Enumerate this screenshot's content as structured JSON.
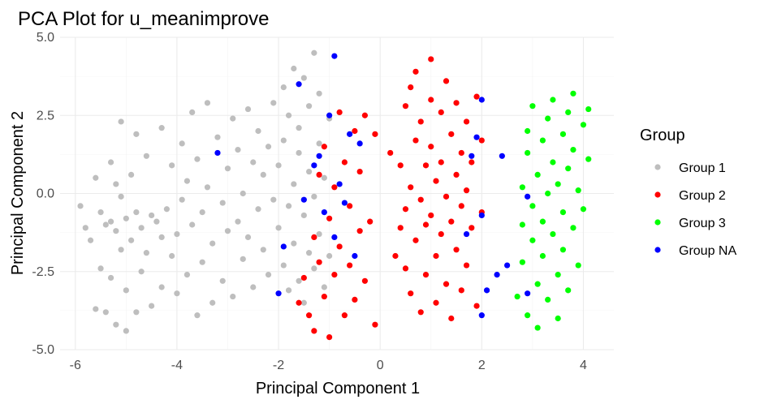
{
  "chart_data": {
    "type": "scatter",
    "title": "PCA Plot for u_meanimprove",
    "xlabel": "Principal Component 1",
    "ylabel": "Principal Component 2",
    "xlim": [
      -6.3,
      4.6
    ],
    "ylim": [
      -5.0,
      5.0
    ],
    "x_ticks": [
      -6,
      -4,
      -2,
      0,
      2,
      4
    ],
    "y_ticks": [
      -5.0,
      -2.5,
      0.0,
      2.5,
      5.0
    ],
    "x_tick_labels": [
      "-6",
      "-4",
      "-2",
      "0",
      "2",
      "4"
    ],
    "y_tick_labels": [
      "-5.0",
      "-2.5",
      "0.0",
      "2.5",
      "5.0"
    ],
    "grid": true,
    "legend": {
      "title": "Group",
      "position": "right"
    },
    "series": [
      {
        "name": "Group 1",
        "color": "#bebebe",
        "points": [
          [
            -5.9,
            -0.4
          ],
          [
            -5.8,
            -1.1
          ],
          [
            -5.7,
            -1.5
          ],
          [
            -5.6,
            0.5
          ],
          [
            -5.6,
            -3.7
          ],
          [
            -5.5,
            -0.6
          ],
          [
            -5.5,
            -2.4
          ],
          [
            -5.4,
            -1.0
          ],
          [
            -5.4,
            -3.8
          ],
          [
            -5.3,
            1.0
          ],
          [
            -5.3,
            -0.9
          ],
          [
            -5.3,
            -2.7
          ],
          [
            -5.2,
            0.3
          ],
          [
            -5.2,
            -4.2
          ],
          [
            -5.2,
            -1.2
          ],
          [
            -5.1,
            2.3
          ],
          [
            -5.1,
            -0.1
          ],
          [
            -5.1,
            -1.8
          ],
          [
            -5.0,
            -0.8
          ],
          [
            -5.0,
            -3.1
          ],
          [
            -5.0,
            -4.4
          ],
          [
            -4.9,
            -1.5
          ],
          [
            -4.9,
            0.6
          ],
          [
            -4.8,
            1.9
          ],
          [
            -4.8,
            -0.6
          ],
          [
            -4.8,
            -3.8
          ],
          [
            -4.7,
            -1.1
          ],
          [
            -4.7,
            -2.5
          ],
          [
            -4.6,
            -1.9
          ],
          [
            -4.6,
            1.2
          ],
          [
            -4.5,
            -0.7
          ],
          [
            -4.5,
            -3.6
          ],
          [
            -4.4,
            -0.9
          ],
          [
            -4.3,
            2.1
          ],
          [
            -4.3,
            -1.4
          ],
          [
            -4.3,
            -3.0
          ],
          [
            -4.2,
            -0.5
          ],
          [
            -4.1,
            0.9
          ],
          [
            -4.1,
            -2.0
          ],
          [
            -4.0,
            -1.3
          ],
          [
            -4.0,
            -3.2
          ],
          [
            -3.9,
            1.6
          ],
          [
            -3.9,
            -0.2
          ],
          [
            -3.8,
            -2.6
          ],
          [
            -3.8,
            0.4
          ],
          [
            -3.7,
            2.6
          ],
          [
            -3.7,
            -1.0
          ],
          [
            -3.6,
            -3.9
          ],
          [
            -3.6,
            1.1
          ],
          [
            -3.5,
            -0.6
          ],
          [
            -3.5,
            -2.2
          ],
          [
            -3.4,
            2.9
          ],
          [
            -3.4,
            0.2
          ],
          [
            -3.3,
            -1.6
          ],
          [
            -3.3,
            -3.5
          ],
          [
            -3.2,
            1.8
          ],
          [
            -3.1,
            -0.3
          ],
          [
            -3.1,
            -2.8
          ],
          [
            -3.0,
            0.8
          ],
          [
            -3.0,
            -1.2
          ],
          [
            -2.9,
            2.4
          ],
          [
            -2.9,
            -3.3
          ],
          [
            -2.8,
            1.4
          ],
          [
            -2.8,
            -0.9
          ],
          [
            -2.7,
            0.0
          ],
          [
            -2.7,
            -2.1
          ],
          [
            -2.6,
            2.7
          ],
          [
            -2.6,
            -1.4
          ],
          [
            -2.5,
            1.0
          ],
          [
            -2.5,
            -3.0
          ],
          [
            -2.4,
            -0.5
          ],
          [
            -2.4,
            2.0
          ],
          [
            -2.3,
            -1.8
          ],
          [
            -2.3,
            0.6
          ],
          [
            -2.2,
            1.5
          ],
          [
            -2.2,
            -2.6
          ],
          [
            -2.1,
            -0.2
          ],
          [
            -2.1,
            2.9
          ],
          [
            -2.0,
            -1.1
          ],
          [
            -2.0,
            0.9
          ],
          [
            -1.9,
            -2.3
          ],
          [
            -1.9,
            1.7
          ],
          [
            -1.9,
            3.4
          ],
          [
            -1.8,
            -0.4
          ],
          [
            -1.8,
            -3.1
          ],
          [
            -1.8,
            2.5
          ],
          [
            -1.7,
            0.3
          ],
          [
            -1.7,
            -1.6
          ],
          [
            -1.7,
            4.0
          ],
          [
            -1.6,
            1.3
          ],
          [
            -1.6,
            -2.8
          ],
          [
            -1.6,
            2.1
          ],
          [
            -1.5,
            -0.7
          ],
          [
            -1.5,
            3.7
          ],
          [
            -1.5,
            -3.5
          ],
          [
            -1.4,
            0.7
          ],
          [
            -1.4,
            -1.9
          ],
          [
            -1.4,
            2.8
          ],
          [
            -1.3,
            4.5
          ],
          [
            -1.3,
            -0.1
          ],
          [
            -1.3,
            -2.4
          ],
          [
            -1.2,
            1.6
          ],
          [
            -1.2,
            3.2
          ],
          [
            -1.2,
            -1.3
          ],
          [
            -1.1,
            -3.0
          ],
          [
            -1.1,
            0.5
          ],
          [
            -1.0,
            2.4
          ],
          [
            -1.0,
            -2.0
          ]
        ]
      },
      {
        "name": "Group 2",
        "color": "#ff0000",
        "points": [
          [
            -1.6,
            -3.5
          ],
          [
            -1.5,
            -2.7
          ],
          [
            -1.4,
            -3.9
          ],
          [
            -1.3,
            -1.4
          ],
          [
            -1.3,
            -4.4
          ],
          [
            -1.2,
            -2.2
          ],
          [
            -1.2,
            0.6
          ],
          [
            -1.1,
            -3.3
          ],
          [
            -1.1,
            1.5
          ],
          [
            -1.0,
            -0.8
          ],
          [
            -1.0,
            -4.6
          ],
          [
            -0.9,
            0.2
          ],
          [
            -0.9,
            -2.6
          ],
          [
            -0.8,
            2.6
          ],
          [
            -0.8,
            -1.7
          ],
          [
            -0.7,
            -3.9
          ],
          [
            -0.7,
            1.0
          ],
          [
            -0.6,
            -0.4
          ],
          [
            -0.6,
            -2.3
          ],
          [
            -0.5,
            2.0
          ],
          [
            -0.5,
            -3.4
          ],
          [
            -0.4,
            0.7
          ],
          [
            -0.4,
            -1.2
          ],
          [
            -0.3,
            2.5
          ],
          [
            -0.3,
            -2.8
          ],
          [
            -0.2,
            -0.9
          ],
          [
            -0.1,
            -4.2
          ],
          [
            -0.1,
            1.9
          ],
          [
            0.2,
            1.3
          ],
          [
            0.3,
            -2.0
          ],
          [
            0.4,
            -1.1
          ],
          [
            0.4,
            0.9
          ],
          [
            0.5,
            2.8
          ],
          [
            0.5,
            -0.5
          ],
          [
            0.5,
            -2.4
          ],
          [
            0.6,
            3.4
          ],
          [
            0.6,
            0.2
          ],
          [
            0.6,
            -3.2
          ],
          [
            0.7,
            1.7
          ],
          [
            0.7,
            -1.5
          ],
          [
            0.7,
            3.9
          ],
          [
            0.8,
            -0.2
          ],
          [
            0.8,
            -3.8
          ],
          [
            0.8,
            2.3
          ],
          [
            0.9,
            0.9
          ],
          [
            0.9,
            -1.0
          ],
          [
            0.9,
            -2.6
          ],
          [
            1.0,
            3.0
          ],
          [
            1.0,
            -0.7
          ],
          [
            1.0,
            1.5
          ],
          [
            1.0,
            4.3
          ],
          [
            1.1,
            -2.0
          ],
          [
            1.1,
            0.4
          ],
          [
            1.1,
            -3.5
          ],
          [
            1.2,
            2.6
          ],
          [
            1.2,
            -1.3
          ],
          [
            1.2,
            1.0
          ],
          [
            1.3,
            -0.1
          ],
          [
            1.3,
            3.6
          ],
          [
            1.3,
            -2.9
          ],
          [
            1.4,
            1.9
          ],
          [
            1.4,
            -0.9
          ],
          [
            1.4,
            -4.0
          ],
          [
            1.5,
            0.6
          ],
          [
            1.5,
            2.9
          ],
          [
            1.5,
            -1.8
          ],
          [
            1.6,
            -0.4
          ],
          [
            1.6,
            1.3
          ],
          [
            1.6,
            -3.1
          ],
          [
            1.7,
            2.3
          ],
          [
            1.7,
            0.1
          ],
          [
            1.7,
            -2.3
          ],
          [
            1.8,
            1.0
          ],
          [
            1.8,
            -1.1
          ],
          [
            1.9,
            3.1
          ],
          [
            1.9,
            -3.6
          ],
          [
            2.0,
            1.7
          ],
          [
            2.0,
            -0.6
          ]
        ]
      },
      {
        "name": "Group 3",
        "color": "#00ff00",
        "points": [
          [
            2.7,
            -3.3
          ],
          [
            2.8,
            -1.0
          ],
          [
            2.8,
            0.2
          ],
          [
            2.8,
            -2.2
          ],
          [
            2.9,
            1.3
          ],
          [
            2.9,
            -3.9
          ],
          [
            2.9,
            2.0
          ],
          [
            3.0,
            -0.4
          ],
          [
            3.0,
            -1.5
          ],
          [
            3.0,
            2.8
          ],
          [
            3.1,
            -2.9
          ],
          [
            3.1,
            0.6
          ],
          [
            3.1,
            -4.3
          ],
          [
            3.2,
            1.7
          ],
          [
            3.2,
            -0.9
          ],
          [
            3.2,
            -2.0
          ],
          [
            3.3,
            2.4
          ],
          [
            3.3,
            0.0
          ],
          [
            3.3,
            -3.4
          ],
          [
            3.4,
            1.0
          ],
          [
            3.4,
            -1.3
          ],
          [
            3.4,
            3.0
          ],
          [
            3.5,
            -2.6
          ],
          [
            3.5,
            0.3
          ],
          [
            3.5,
            -4.0
          ],
          [
            3.6,
            1.9
          ],
          [
            3.6,
            -0.6
          ],
          [
            3.6,
            -1.8
          ],
          [
            3.7,
            2.6
          ],
          [
            3.7,
            0.8
          ],
          [
            3.7,
            -3.1
          ],
          [
            3.8,
            -1.1
          ],
          [
            3.8,
            1.4
          ],
          [
            3.8,
            3.2
          ],
          [
            3.9,
            -2.3
          ],
          [
            3.9,
            0.1
          ],
          [
            4.0,
            2.2
          ],
          [
            4.0,
            -0.5
          ],
          [
            4.1,
            1.1
          ],
          [
            4.1,
            2.7
          ]
        ]
      },
      {
        "name": "Group NA",
        "color": "#0000ff",
        "points": [
          [
            -3.2,
            1.3
          ],
          [
            -2.0,
            -3.2
          ],
          [
            -1.9,
            -1.7
          ],
          [
            -1.6,
            3.5
          ],
          [
            -1.5,
            -0.2
          ],
          [
            -1.3,
            0.9
          ],
          [
            -1.2,
            1.2
          ],
          [
            -1.1,
            -0.6
          ],
          [
            -1.0,
            2.5
          ],
          [
            -0.9,
            4.4
          ],
          [
            -0.9,
            -1.4
          ],
          [
            -0.8,
            0.3
          ],
          [
            -0.7,
            -0.3
          ],
          [
            -0.6,
            1.9
          ],
          [
            -0.5,
            -2.0
          ],
          [
            -0.4,
            1.6
          ],
          [
            1.7,
            -1.3
          ],
          [
            1.8,
            1.2
          ],
          [
            1.9,
            1.8
          ],
          [
            2.0,
            3.0
          ],
          [
            2.0,
            -0.7
          ],
          [
            2.1,
            -3.1
          ],
          [
            2.3,
            -2.6
          ],
          [
            2.4,
            1.2
          ],
          [
            2.5,
            -2.3
          ],
          [
            2.9,
            -0.1
          ],
          [
            2.9,
            -3.2
          ],
          [
            2.0,
            -3.9
          ]
        ]
      }
    ]
  }
}
